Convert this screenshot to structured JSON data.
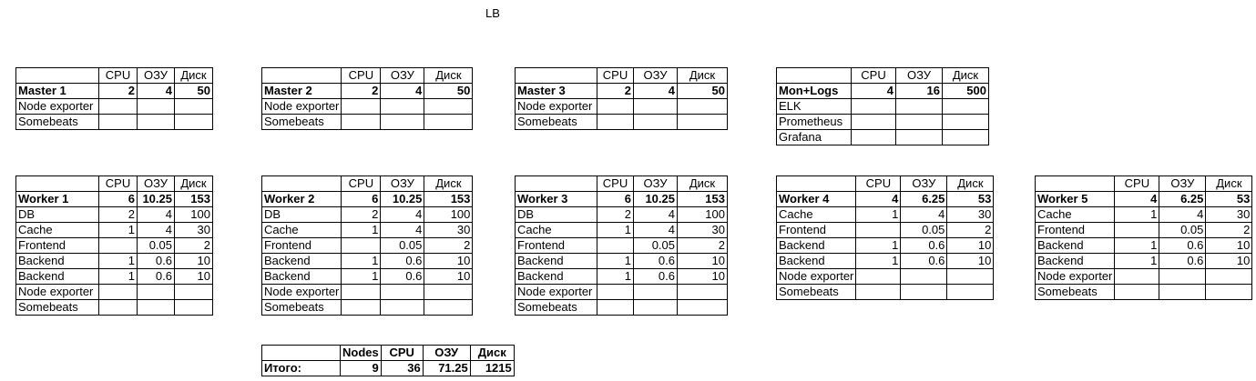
{
  "title": "LB",
  "headers": [
    "CPU",
    "ОЗУ",
    "Диск"
  ],
  "top_tables": [
    {
      "name": "Master 1",
      "cpu": "2",
      "ram": "4",
      "disk": "50",
      "rows": [
        [
          "Node exporter",
          "",
          "",
          ""
        ],
        [
          "Somebeats",
          "",
          "",
          ""
        ]
      ]
    },
    {
      "name": "Master 2",
      "cpu": "2",
      "ram": "4",
      "disk": "50",
      "rows": [
        [
          "Node exporter",
          "",
          "",
          ""
        ],
        [
          "Somebeats",
          "",
          "",
          ""
        ]
      ]
    },
    {
      "name": "Master 3",
      "cpu": "2",
      "ram": "4",
      "disk": "50",
      "rows": [
        [
          "Node exporter",
          "",
          "",
          ""
        ],
        [
          "Somebeats",
          "",
          "",
          ""
        ]
      ]
    },
    {
      "name": "Mon+Logs",
      "cpu": "4",
      "ram": "16",
      "disk": "500",
      "rows": [
        [
          "ELK",
          "",
          "",
          ""
        ],
        [
          "Prometheus",
          "",
          "",
          ""
        ],
        [
          "Grafana",
          "",
          "",
          ""
        ]
      ]
    }
  ],
  "worker_tables": [
    {
      "name": "Worker 1",
      "cpu": "6",
      "ram": "10.25",
      "disk": "153",
      "rows": [
        [
          "DB",
          "2",
          "4",
          "100"
        ],
        [
          "Cache",
          "1",
          "4",
          "30"
        ],
        [
          "Frontend",
          "",
          "0.05",
          "2"
        ],
        [
          "Backend",
          "1",
          "0.6",
          "10"
        ],
        [
          "Backend",
          "1",
          "0.6",
          "10"
        ],
        [
          "Node exporter",
          "",
          "",
          ""
        ],
        [
          "Somebeats",
          "",
          "",
          ""
        ]
      ]
    },
    {
      "name": "Worker 2",
      "cpu": "6",
      "ram": "10.25",
      "disk": "153",
      "rows": [
        [
          "DB",
          "2",
          "4",
          "100"
        ],
        [
          "Cache",
          "1",
          "4",
          "30"
        ],
        [
          "Frontend",
          "",
          "0.05",
          "2"
        ],
        [
          "Backend",
          "1",
          "0.6",
          "10"
        ],
        [
          "Backend",
          "1",
          "0.6",
          "10"
        ],
        [
          "Node exporter",
          "",
          "",
          ""
        ],
        [
          "Somebeats",
          "",
          "",
          ""
        ]
      ]
    },
    {
      "name": "Worker 3",
      "cpu": "6",
      "ram": "10.25",
      "disk": "153",
      "rows": [
        [
          "DB",
          "2",
          "4",
          "100"
        ],
        [
          "Cache",
          "1",
          "4",
          "30"
        ],
        [
          "Frontend",
          "",
          "0.05",
          "2"
        ],
        [
          "Backend",
          "1",
          "0.6",
          "10"
        ],
        [
          "Backend",
          "1",
          "0.6",
          "10"
        ],
        [
          "Node exporter",
          "",
          "",
          ""
        ],
        [
          "Somebeats",
          "",
          "",
          ""
        ]
      ]
    },
    {
      "name": "Worker 4",
      "cpu": "4",
      "ram": "6.25",
      "disk": "53",
      "rows": [
        [
          "Cache",
          "1",
          "4",
          "30"
        ],
        [
          "Frontend",
          "",
          "0.05",
          "2"
        ],
        [
          "Backend",
          "1",
          "0.6",
          "10"
        ],
        [
          "Backend",
          "1",
          "0.6",
          "10"
        ],
        [
          "Node exporter",
          "",
          "",
          ""
        ],
        [
          "Somebeats",
          "",
          "",
          ""
        ]
      ]
    },
    {
      "name": "Worker 5",
      "cpu": "4",
      "ram": "6.25",
      "disk": "53",
      "rows": [
        [
          "Cache",
          "1",
          "4",
          "30"
        ],
        [
          "Frontend",
          "",
          "0.05",
          "2"
        ],
        [
          "Backend",
          "1",
          "0.6",
          "10"
        ],
        [
          "Backend",
          "1",
          "0.6",
          "10"
        ],
        [
          "Node exporter",
          "",
          "",
          ""
        ],
        [
          "Somebeats",
          "",
          "",
          ""
        ]
      ]
    }
  ],
  "total": {
    "headers": [
      "Nodes",
      "CPU",
      "ОЗУ",
      "Диск"
    ],
    "label": "Итого:",
    "values": [
      "9",
      "36",
      "71.25",
      "1215"
    ]
  }
}
